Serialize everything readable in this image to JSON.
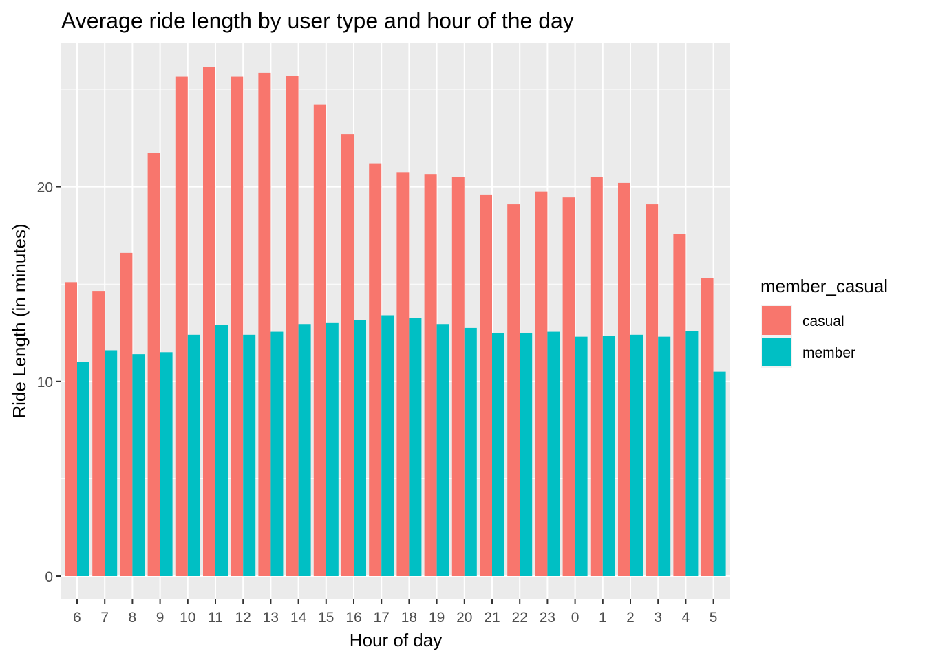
{
  "chart_data": {
    "type": "bar",
    "title": "Average ride length by user type and hour of the day",
    "xlabel": "Hour of day",
    "ylabel": "Ride Length (in minutes)",
    "categories": [
      "6",
      "7",
      "8",
      "9",
      "10",
      "11",
      "12",
      "13",
      "14",
      "15",
      "16",
      "17",
      "18",
      "19",
      "20",
      "21",
      "22",
      "23",
      "0",
      "1",
      "2",
      "3",
      "4",
      "5"
    ],
    "series": [
      {
        "name": "casual",
        "color": "#F8766D",
        "values": [
          15.1,
          14.65,
          16.6,
          21.75,
          25.65,
          26.15,
          25.65,
          25.85,
          25.7,
          24.2,
          22.7,
          21.2,
          20.75,
          20.65,
          20.5,
          19.6,
          19.1,
          19.75,
          19.45,
          20.5,
          20.2,
          19.1,
          17.55,
          15.3
        ]
      },
      {
        "name": "member",
        "color": "#00BFC4",
        "values": [
          11.0,
          11.6,
          11.4,
          11.5,
          12.4,
          12.9,
          12.4,
          12.55,
          12.95,
          13.0,
          13.15,
          13.4,
          13.25,
          12.95,
          12.75,
          12.5,
          12.5,
          12.55,
          12.3,
          12.35,
          12.4,
          12.3,
          12.6,
          10.5
        ]
      }
    ],
    "yticks": [
      0,
      10,
      20
    ],
    "ylim": [
      -1.2,
      27.4
    ],
    "legend_title": "member_casual",
    "legend_position": "right",
    "grid": true
  }
}
